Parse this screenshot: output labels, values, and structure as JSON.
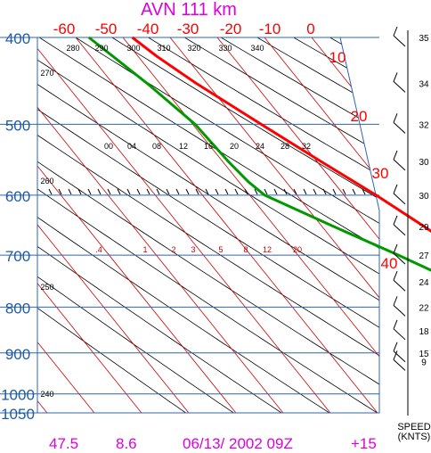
{
  "title": "AVN  111  km",
  "footer": {
    "lat": "47.5",
    "lon": "8.6",
    "datetime": "06/13/ 2002 09Z",
    "forecast": "+15"
  },
  "speed_label": [
    "SPEED",
    "(KNTS)"
  ],
  "colors": {
    "title": "#dd00dd",
    "axis_text": "#1e5aa8",
    "isotherm": "#cc0000",
    "temperature": "#ff0000",
    "dewpoint": "#009900",
    "isobar": "#2f64b4",
    "adiabat": "#000000",
    "mixing_ratio_text": "#cc0000",
    "footer": "#dd00dd"
  },
  "chart_data": {
    "type": "skew-t log-p",
    "title": "AVN  111  km",
    "pressure_levels": [
      400,
      500,
      600,
      700,
      800,
      900,
      1000,
      1050
    ],
    "top_temperature_labels": [
      "-60",
      "-50",
      "-40",
      "-30",
      "-20",
      "-10",
      "0"
    ],
    "skewed_temperature_labels": [
      "10",
      "20",
      "30",
      "40"
    ],
    "theta_labels": [
      "280",
      "290",
      "300",
      "310",
      "320",
      "330",
      "340",
      "270",
      "260",
      "250",
      "240"
    ],
    "theta_e_labels": [
      "00",
      "04",
      "08",
      "12",
      "16",
      "20",
      "24",
      "28",
      "32"
    ],
    "mixing_ratio_labels": [
      ".4",
      "1",
      "2",
      "3",
      "5",
      "8",
      "12",
      "20"
    ],
    "temperature_profile": [
      {
        "p": 905,
        "t": 12.2
      },
      {
        "p": 880,
        "t": 8.4
      },
      {
        "p": 850,
        "t": 6.2
      },
      {
        "p": 820,
        "t": 4.2
      },
      {
        "p": 800,
        "t": 2.7
      },
      {
        "p": 750,
        "t": -0.9
      },
      {
        "p": 700,
        "t": -4.3
      },
      {
        "p": 650,
        "t": -8.4
      },
      {
        "p": 600,
        "t": -13.2
      },
      {
        "p": 550,
        "t": -19.2
      },
      {
        "p": 500,
        "t": -25.5
      },
      {
        "p": 450,
        "t": -32.3
      },
      {
        "p": 420,
        "t": -36.0
      },
      {
        "p": 400,
        "t": -38.0
      }
    ],
    "dewpoint_profile": [
      {
        "p": 910,
        "t": 7.0
      },
      {
        "p": 880,
        "t": 3.9
      },
      {
        "p": 850,
        "t": 0.8
      },
      {
        "p": 800,
        "t": -4.5
      },
      {
        "p": 750,
        "t": -11.0
      },
      {
        "p": 700,
        "t": -18.7
      },
      {
        "p": 650,
        "t": -27.6
      },
      {
        "p": 600,
        "t": -36.8
      },
      {
        "p": 580,
        "t": -38.0
      },
      {
        "p": 550,
        "t": -38.8
      },
      {
        "p": 500,
        "t": -39.5
      },
      {
        "p": 450,
        "t": -42.7
      },
      {
        "p": 420,
        "t": -45.3
      },
      {
        "p": 400,
        "t": -47.2
      }
    ],
    "wind_speeds": [
      {
        "p": 400,
        "kt": "35"
      },
      {
        "p": 450,
        "kt": "34"
      },
      {
        "p": 500,
        "kt": "32"
      },
      {
        "p": 550,
        "kt": "30"
      },
      {
        "p": 600,
        "kt": "30"
      },
      {
        "p": 650,
        "kt": "29"
      },
      {
        "p": 700,
        "kt": "27"
      },
      {
        "p": 750,
        "kt": "24"
      },
      {
        "p": 800,
        "kt": "22"
      },
      {
        "p": 850,
        "kt": "18"
      },
      {
        "p": 900,
        "kt": "15"
      },
      {
        "p": 920,
        "kt": "9"
      }
    ]
  }
}
